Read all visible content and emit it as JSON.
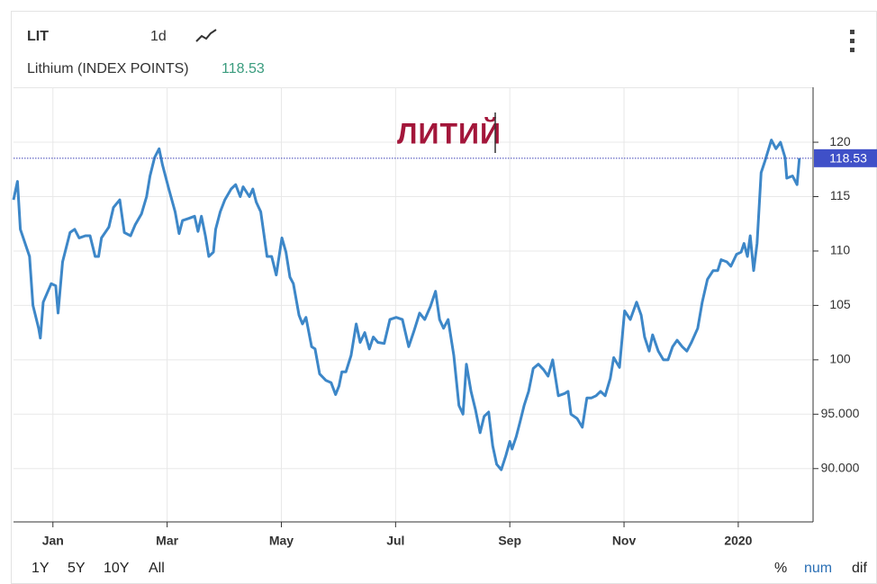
{
  "toolbar": {
    "symbol": "LIT",
    "interval": "1d"
  },
  "chart_data": {
    "type": "line",
    "annotation": "ЛИТИЙ",
    "x": [
      -0.69,
      -0.62,
      -0.57,
      -0.41,
      -0.35,
      -0.25,
      -0.22,
      -0.17,
      -0.03,
      0.05,
      0.09,
      0.17,
      0.3,
      0.38,
      0.46,
      0.57,
      0.65,
      0.74,
      0.8,
      0.85,
      0.98,
      1.06,
      1.17,
      1.25,
      1.36,
      1.44,
      1.55,
      1.64,
      1.7,
      1.78,
      1.86,
      1.92,
      2.03,
      2.14,
      2.21,
      2.27,
      2.38,
      2.48,
      2.54,
      2.6,
      2.67,
      2.73,
      2.81,
      2.85,
      2.93,
      3.01,
      3.12,
      3.2,
      3.28,
      3.33,
      3.44,
      3.5,
      3.56,
      3.64,
      3.75,
      3.83,
      3.91,
      4.01,
      4.08,
      4.15,
      4.21,
      4.31,
      4.37,
      4.43,
      4.53,
      4.59,
      4.67,
      4.78,
      4.87,
      4.95,
      5.01,
      5.06,
      5.13,
      5.22,
      5.31,
      5.38,
      5.46,
      5.54,
      5.61,
      5.69,
      5.8,
      5.9,
      6.01,
      6.12,
      6.23,
      6.32,
      6.42,
      6.51,
      6.61,
      6.7,
      6.77,
      6.84,
      6.92,
      7.02,
      7.11,
      7.18,
      7.24,
      7.32,
      7.4,
      7.48,
      7.55,
      7.63,
      7.7,
      7.77,
      7.85,
      7.93,
      8.0,
      8.04,
      8.11,
      8.18,
      8.25,
      8.33,
      8.41,
      8.5,
      8.59,
      8.67,
      8.75,
      8.85,
      8.96,
      9.02,
      9.07,
      9.18,
      9.27,
      9.35,
      9.43,
      9.51,
      9.59,
      9.67,
      9.76,
      9.82,
      9.92,
      10.01,
      10.11,
      10.22,
      10.3,
      10.36,
      10.44,
      10.5,
      10.6,
      10.69,
      10.77,
      10.85,
      10.93,
      11.02,
      11.1,
      11.18,
      11.29,
      11.37,
      11.46,
      11.56,
      11.64,
      11.7,
      11.8,
      11.87,
      11.97,
      12.05,
      12.1,
      12.16,
      12.21,
      12.27,
      12.33,
      12.4,
      12.47,
      12.58,
      12.66,
      12.74,
      12.82,
      12.85,
      12.95,
      13.03,
      13.07
    ],
    "series": [
      {
        "name": "Lithium (INDEX POINTS)",
        "color": "#3d87c8",
        "values": [
          114.7,
          116.4,
          112,
          109.5,
          105,
          102.9,
          102,
          105.3,
          107,
          106.8,
          104.3,
          109,
          111.7,
          112,
          111.2,
          111.4,
          111.4,
          109.5,
          109.5,
          111.2,
          112.2,
          114,
          114.7,
          111.7,
          111.4,
          112.4,
          113.4,
          115,
          116.9,
          118.6,
          119.4,
          117.9,
          115.7,
          113.6,
          111.6,
          112.8,
          113,
          113.2,
          111.8,
          113.2,
          111.4,
          109.5,
          109.9,
          112,
          113.6,
          114.7,
          115.7,
          116.1,
          115,
          115.9,
          115,
          115.7,
          114.5,
          113.6,
          109.5,
          109.5,
          107.8,
          111.2,
          109.9,
          107.6,
          107,
          104.1,
          103.3,
          103.9,
          101.2,
          101,
          98.7,
          98.1,
          97.9,
          96.8,
          97.6,
          98.9,
          98.9,
          100.4,
          103.3,
          101.6,
          102.5,
          101,
          102.1,
          101.6,
          101.5,
          103.7,
          103.9,
          103.7,
          101.2,
          102.6,
          104.3,
          103.7,
          104.9,
          106.3,
          103.7,
          102.9,
          103.7,
          100.4,
          95.8,
          95,
          99.6,
          97.1,
          95.4,
          93.3,
          94.8,
          95.2,
          92.1,
          90.4,
          89.9,
          91.2,
          92.5,
          91.8,
          92.9,
          94.3,
          95.8,
          97.1,
          99.2,
          99.6,
          99.1,
          98.5,
          100,
          96.7,
          96.9,
          97.1,
          95,
          94.6,
          93.8,
          96.5,
          96.5,
          96.7,
          97.1,
          96.7,
          98.3,
          100.2,
          99.3,
          104.5,
          103.7,
          105.3,
          104.1,
          102.1,
          100.8,
          102.3,
          100.8,
          100,
          100,
          101.2,
          101.8,
          101.2,
          100.8,
          101.6,
          102.9,
          105.3,
          107.4,
          108.2,
          108.2,
          109.2,
          109,
          108.6,
          109.7,
          109.9,
          110.7,
          109.5,
          111.4,
          108.2,
          110.7,
          117.2,
          118.3,
          120.2,
          119.4,
          120,
          118.6,
          116.7,
          116.9,
          116.1,
          118.53
        ]
      }
    ],
    "xlim": [
      -0.69,
      13.31
    ],
    "xticks": [
      {
        "value": 0,
        "label": "Jan"
      },
      {
        "value": 2,
        "label": "Mar"
      },
      {
        "value": 4,
        "label": "May"
      },
      {
        "value": 6,
        "label": "Jul"
      },
      {
        "value": 8,
        "label": "Sep"
      },
      {
        "value": 10,
        "label": "Nov"
      },
      {
        "value": 12,
        "label": "2020"
      }
    ],
    "ylim": [
      85.1,
      125.05
    ],
    "yticks": [
      {
        "value": 90,
        "label": "90.000"
      },
      {
        "value": 95,
        "label": "95.000"
      },
      100,
      105,
      110,
      115,
      120
    ],
    "grid": true
  },
  "range_buttons": [
    "1Y",
    "5Y",
    "10Y",
    "All"
  ],
  "scale_modes": [
    "%",
    "num",
    "dif"
  ]
}
